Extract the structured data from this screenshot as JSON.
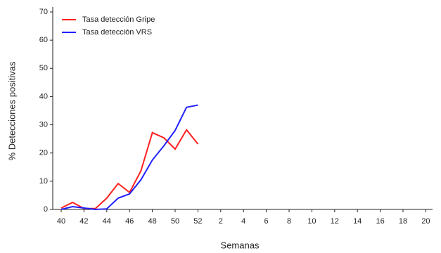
{
  "chart_data": {
    "type": "line",
    "x_label": "Semanas",
    "y_label": "% Detecciones positivas",
    "categories": [
      "40",
      null,
      "42",
      null,
      "44",
      null,
      "46",
      null,
      "48",
      null,
      "50",
      null,
      "52",
      null,
      "2",
      null,
      "4",
      null,
      "6",
      null,
      "8",
      null,
      "10",
      null,
      "12",
      null,
      "14",
      null,
      "16",
      null,
      "18",
      null,
      "20"
    ],
    "series": [
      {
        "name": "Tasa detección Gripe",
        "color": "#ff2020",
        "values": [
          0.5,
          2.5,
          0.3,
          0.3,
          4,
          9.2,
          6,
          13.7,
          27.2,
          25.4,
          21.4,
          28.2,
          23.2,
          null,
          null,
          null,
          null,
          null,
          null,
          null,
          null,
          null,
          null,
          null,
          null,
          null,
          null,
          null,
          null,
          null,
          null,
          null,
          null
        ]
      },
      {
        "name": "Tasa detección VRS",
        "color": "#2020ff",
        "values": [
          0,
          1,
          0.5,
          0,
          0.2,
          4,
          5.5,
          10.5,
          17.5,
          22.5,
          28,
          36.2,
          37,
          null,
          null,
          null,
          null,
          null,
          null,
          null,
          null,
          null,
          null,
          null,
          null,
          null,
          null,
          null,
          null,
          null,
          null,
          null,
          null
        ]
      }
    ],
    "ylim": [
      0,
      70
    ],
    "yticks": [
      0,
      10,
      20,
      30,
      40,
      50,
      60,
      70
    ],
    "grid": false,
    "legend": "upper left"
  }
}
